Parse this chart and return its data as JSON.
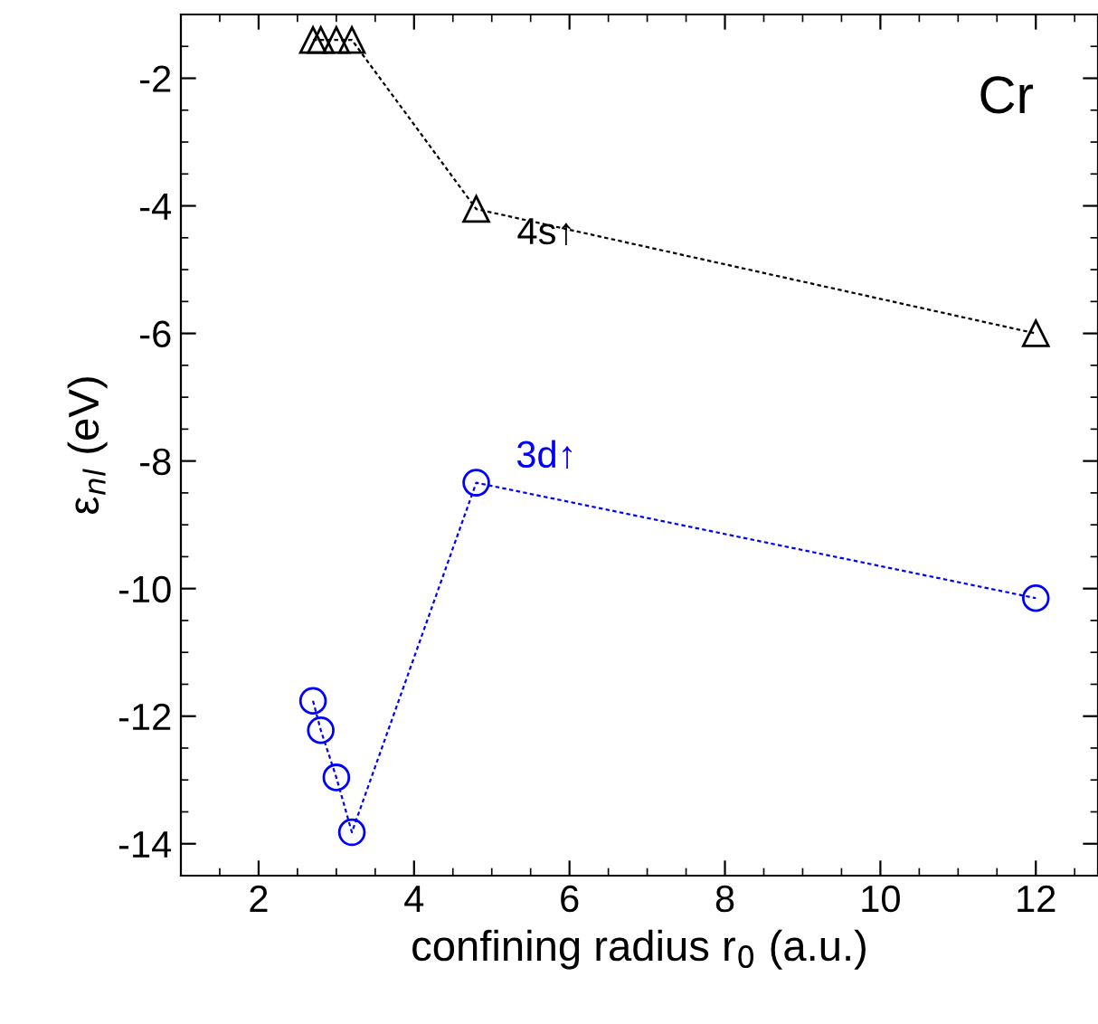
{
  "chart_data": {
    "type": "line",
    "xlabel": "confining radius r$_{0}$ (a.u.)",
    "ylabel": "ε$_{nl}$ (eV)",
    "xlim": [
      1,
      12.8
    ],
    "xticks": [
      2,
      4,
      6,
      8,
      10,
      12
    ],
    "ylim": [
      -14.5,
      -1
    ],
    "yticks": [
      -14,
      -12,
      -10,
      -8,
      -6,
      -4,
      -2
    ],
    "series": [
      {
        "name": "4s↑",
        "color": "#000000",
        "marker": "triangle",
        "line_style": "dotted",
        "x": [
          2.7,
          2.8,
          3.0,
          3.2,
          4.8,
          12
        ],
        "values": [
          -1.4,
          -1.4,
          -1.4,
          -1.4,
          -4.05,
          -6.0
        ]
      },
      {
        "name": "3d↑",
        "color": "#0000ff",
        "marker": "circle",
        "line_style": "dotted",
        "x": [
          2.7,
          2.8,
          3.0,
          3.2,
          4.8,
          12
        ],
        "values": [
          -11.76,
          -12.22,
          -12.96,
          -13.82,
          -8.34,
          -10.15
        ]
      }
    ],
    "annotations": [
      "Cr"
    ],
    "grid": false,
    "legend": false
  }
}
